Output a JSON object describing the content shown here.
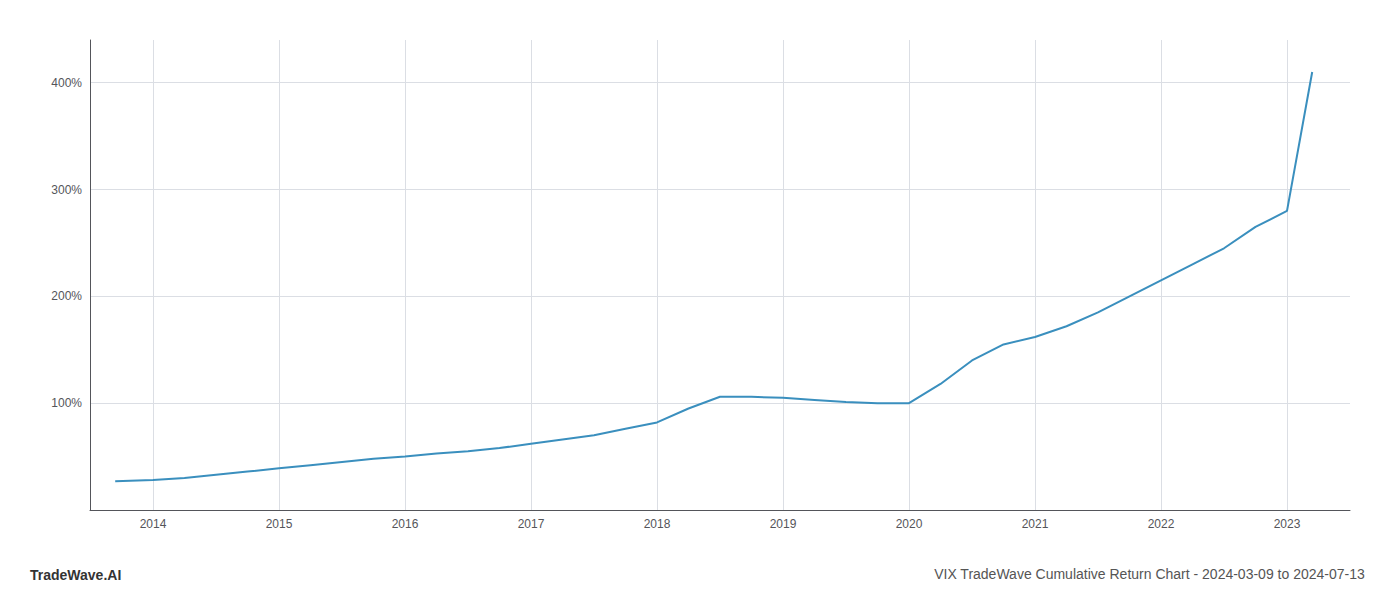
{
  "chart_data": {
    "type": "line",
    "title": "VIX TradeWave Cumulative Return Chart - 2024-03-09 to 2024-07-13",
    "annotations": [
      "TradeWave.AI"
    ],
    "x": [
      2013.7,
      2014.0,
      2014.25,
      2014.5,
      2014.75,
      2015.0,
      2015.25,
      2015.5,
      2015.75,
      2016.0,
      2016.25,
      2016.5,
      2016.75,
      2017.0,
      2017.25,
      2017.5,
      2017.75,
      2018.0,
      2018.25,
      2018.5,
      2018.75,
      2019.0,
      2019.25,
      2019.5,
      2019.75,
      2020.0,
      2020.25,
      2020.5,
      2020.75,
      2021.0,
      2021.25,
      2021.5,
      2021.75,
      2022.0,
      2022.25,
      2022.5,
      2022.75,
      2023.0,
      2023.2
    ],
    "values": [
      27,
      28,
      30,
      33,
      36,
      39,
      42,
      45,
      48,
      50,
      53,
      55,
      58,
      62,
      66,
      70,
      76,
      82,
      95,
      106,
      106,
      105,
      103,
      101,
      100,
      100,
      118,
      140,
      155,
      162,
      172,
      185,
      200,
      215,
      230,
      245,
      265,
      280,
      410
    ],
    "color": "#3a8fbe",
    "xlim": [
      2013.5,
      2023.5
    ],
    "ylim": [
      0,
      440
    ],
    "xticks": [
      2014,
      2015,
      2016,
      2017,
      2018,
      2019,
      2020,
      2021,
      2022,
      2023
    ],
    "yticks": [
      {
        "value": 100,
        "label": "100%"
      },
      {
        "value": 200,
        "label": "200%"
      },
      {
        "value": 300,
        "label": "300%"
      },
      {
        "value": 400,
        "label": "400%"
      }
    ],
    "grid": true
  }
}
